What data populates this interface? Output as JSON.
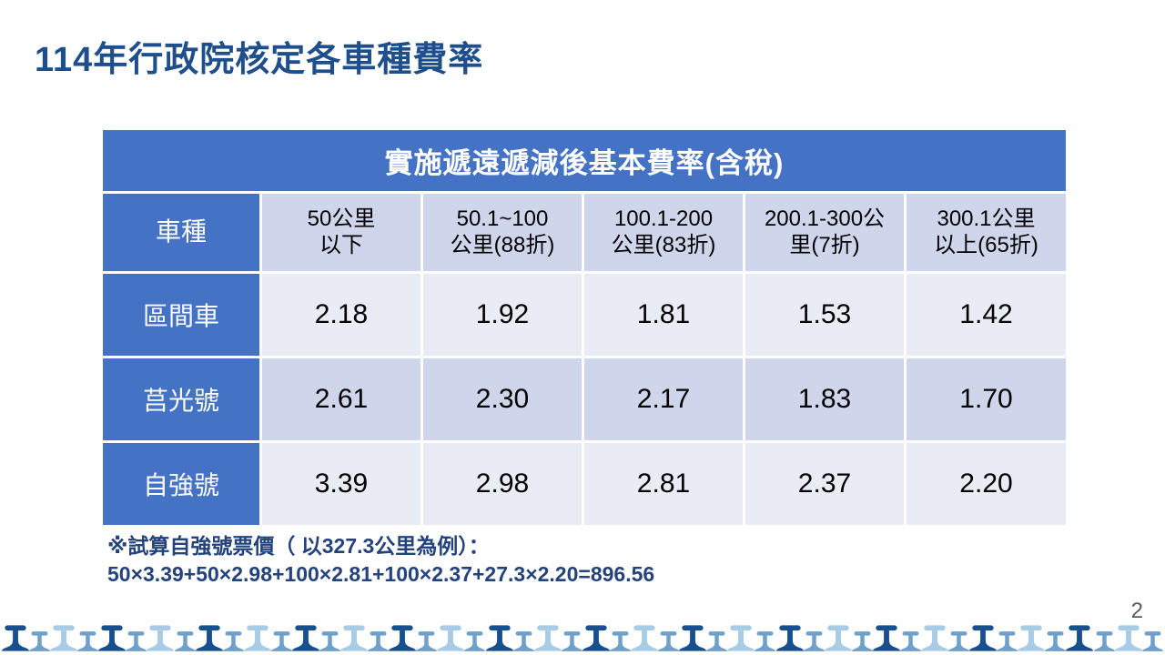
{
  "slide": {
    "title": "114年行政院核定各車種費率",
    "page_number": "2"
  },
  "table": {
    "title": "實施遞遠遞減後基本費率(含稅)",
    "columns": [
      {
        "label": "車種"
      },
      {
        "line1": "50公里",
        "line2": "以下"
      },
      {
        "line1": "50.1~100",
        "line2": "公里(88折)"
      },
      {
        "line1": "100.1-200",
        "line2": "公里(83折)"
      },
      {
        "line1": "200.1-300公",
        "line2": "里(7折)"
      },
      {
        "line1": "300.1公里",
        "line2": "以上(65折)"
      }
    ],
    "rows": [
      {
        "label": "區間車",
        "values": [
          "2.18",
          "1.92",
          "1.81",
          "1.53",
          "1.42"
        ]
      },
      {
        "label": "莒光號",
        "values": [
          "2.61",
          "2.30",
          "2.17",
          "1.83",
          "1.70"
        ]
      },
      {
        "label": "自強號",
        "values": [
          "3.39",
          "2.98",
          "2.81",
          "2.37",
          "2.20"
        ]
      }
    ]
  },
  "note": {
    "line1": "※試算自強號票價（ 以327.3公里為例）：",
    "line2": "50×3.39+50×2.98+100×2.81+100×2.37+27.3×2.20=896.56"
  },
  "colors": {
    "header_blue": "#4472C4",
    "band_dark": "#CFD5EA",
    "band_light": "#E9EBF5",
    "title_navy": "#1F4E8C",
    "note_navy": "#24437C",
    "page_gray": "#595959",
    "rail_dark": "#17508F",
    "rail_steel": "#6FA0CB",
    "rail_light": "#A8CBE6"
  },
  "rail_strip": {
    "count": 48,
    "pattern": [
      "rail_dark",
      "rail_steel",
      "rail_light",
      "rail_steel"
    ]
  }
}
